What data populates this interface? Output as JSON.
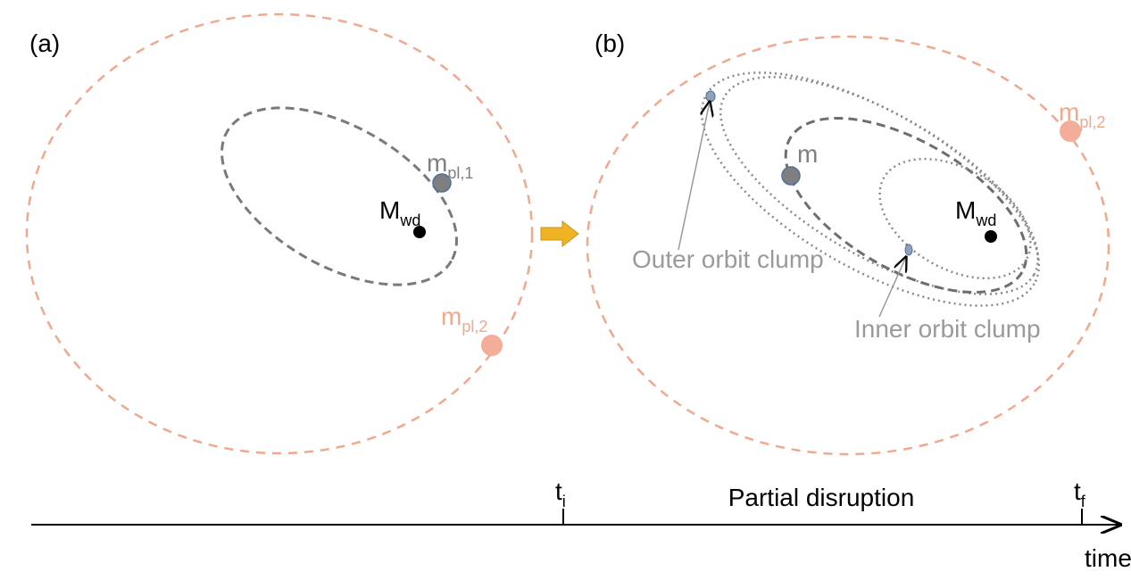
{
  "panel_a": {
    "label": "(a)",
    "planet1": {
      "symbol": "m",
      "subscript": "pl,1"
    },
    "star": {
      "symbol": "M",
      "subscript": "wd"
    },
    "planet2": {
      "symbol": "m",
      "subscript": "pl,2"
    }
  },
  "panel_b": {
    "label": "(b)",
    "body": {
      "symbol": "m"
    },
    "star": {
      "symbol": "M",
      "subscript": "wd"
    },
    "planet2": {
      "symbol": "m",
      "subscript": "pl,2"
    },
    "outer_clump": "Outer orbit clump",
    "inner_clump": "Inner orbit clump"
  },
  "timeline": {
    "start": {
      "symbol": "t",
      "subscript": "i"
    },
    "phase": "Partial disruption",
    "end": {
      "symbol": "t",
      "subscript": "f"
    },
    "axis_label": "time"
  }
}
